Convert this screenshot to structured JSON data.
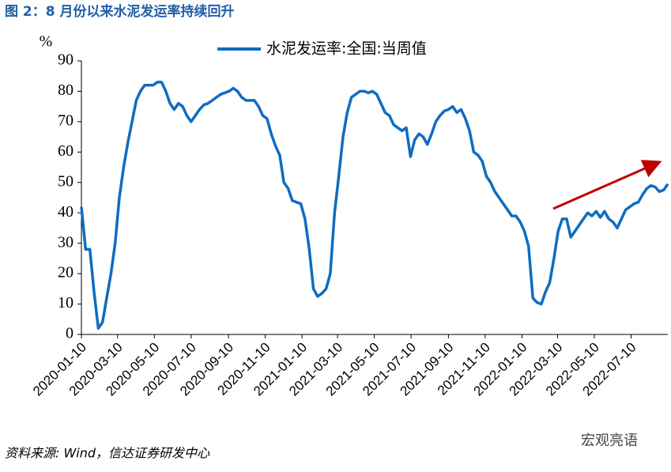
{
  "chart_data": {
    "type": "line",
    "title": "图 2：8 月份以来水泥发运率持续回升",
    "y_unit": "%",
    "source": "资料来源: Wind，信达证券研发中心",
    "watermark": "宏观亮语",
    "legend_position": "top",
    "x": [
      "2020-01-10",
      "2020-01-17",
      "2020-01-24",
      "2020-01-31",
      "2020-02-07",
      "2020-02-14",
      "2020-02-21",
      "2020-02-28",
      "2020-03-06",
      "2020-03-13",
      "2020-03-20",
      "2020-03-27",
      "2020-04-03",
      "2020-04-10",
      "2020-04-17",
      "2020-04-24",
      "2020-05-01",
      "2020-05-08",
      "2020-05-15",
      "2020-05-22",
      "2020-05-29",
      "2020-06-05",
      "2020-06-12",
      "2020-06-19",
      "2020-06-26",
      "2020-07-03",
      "2020-07-10",
      "2020-07-17",
      "2020-07-24",
      "2020-07-31",
      "2020-08-07",
      "2020-08-14",
      "2020-08-21",
      "2020-08-28",
      "2020-09-04",
      "2020-09-11",
      "2020-09-18",
      "2020-09-25",
      "2020-10-02",
      "2020-10-09",
      "2020-10-16",
      "2020-10-23",
      "2020-10-30",
      "2020-11-06",
      "2020-11-13",
      "2020-11-20",
      "2020-11-27",
      "2020-12-04",
      "2020-12-11",
      "2020-12-18",
      "2020-12-25",
      "2021-01-01",
      "2021-01-08",
      "2021-01-15",
      "2021-01-22",
      "2021-01-29",
      "2021-02-05",
      "2021-02-12",
      "2021-02-19",
      "2021-02-26",
      "2021-03-05",
      "2021-03-12",
      "2021-03-19",
      "2021-03-26",
      "2021-04-02",
      "2021-04-09",
      "2021-04-16",
      "2021-04-23",
      "2021-04-30",
      "2021-05-07",
      "2021-05-14",
      "2021-05-21",
      "2021-05-28",
      "2021-06-04",
      "2021-06-11",
      "2021-06-18",
      "2021-06-25",
      "2021-07-02",
      "2021-07-09",
      "2021-07-16",
      "2021-07-23",
      "2021-07-30",
      "2021-08-06",
      "2021-08-13",
      "2021-08-20",
      "2021-08-27",
      "2021-09-03",
      "2021-09-10",
      "2021-09-17",
      "2021-09-24",
      "2021-10-01",
      "2021-10-08",
      "2021-10-15",
      "2021-10-22",
      "2021-10-29",
      "2021-11-05",
      "2021-11-12",
      "2021-11-19",
      "2021-11-26",
      "2021-12-03",
      "2021-12-10",
      "2021-12-17",
      "2021-12-24",
      "2021-12-31",
      "2022-01-07",
      "2022-01-14",
      "2022-01-21",
      "2022-01-28",
      "2022-02-04",
      "2022-02-11",
      "2022-02-18",
      "2022-02-25",
      "2022-03-04",
      "2022-03-11",
      "2022-03-18",
      "2022-03-25",
      "2022-04-01",
      "2022-04-08",
      "2022-04-15",
      "2022-04-22",
      "2022-04-29",
      "2022-05-06",
      "2022-05-13",
      "2022-05-20",
      "2022-05-27",
      "2022-06-03",
      "2022-06-10",
      "2022-06-17",
      "2022-06-24",
      "2022-07-01",
      "2022-07-08",
      "2022-07-15",
      "2022-07-22",
      "2022-07-29",
      "2022-08-05",
      "2022-08-12",
      "2022-08-19",
      "2022-08-26",
      "2022-09-02",
      "2022-09-09"
    ],
    "series": [
      {
        "name": "水泥发运率:全国:当周值",
        "color": "#0f6cc0",
        "values": [
          42,
          28,
          28,
          14,
          2,
          4,
          12,
          20,
          30,
          45,
          55,
          63,
          70,
          77,
          80,
          82,
          82,
          82,
          83,
          83,
          80,
          76,
          74,
          76,
          75,
          72,
          70,
          72,
          74,
          75.5,
          76,
          77,
          78,
          79,
          79.5,
          80,
          81,
          80,
          78,
          77,
          77,
          77,
          75,
          72,
          71,
          66,
          62,
          59,
          50,
          48,
          44,
          43.5,
          43,
          38,
          28,
          15,
          12.5,
          13.5,
          15,
          20,
          40,
          52,
          65,
          73,
          78,
          79,
          80,
          80,
          79.5,
          80,
          79,
          76,
          73,
          72,
          69,
          68,
          67,
          68,
          58.5,
          64,
          66,
          65,
          62.5,
          66,
          70,
          72,
          73.5,
          74,
          75,
          73,
          74,
          71,
          67,
          60,
          59,
          57,
          52,
          50,
          47,
          45,
          43,
          41,
          39,
          39,
          37,
          34,
          29,
          12,
          10.5,
          10,
          14,
          17,
          25,
          34,
          38,
          38,
          32,
          34,
          36,
          38,
          40,
          39,
          40.5,
          38.5,
          40.5,
          38,
          37,
          35,
          38,
          41,
          42,
          43,
          43.5,
          46,
          48,
          49,
          48.5,
          47,
          47.5,
          49.5
        ]
      }
    ],
    "xlim": [
      "2020-01-10",
      "2022-09-09"
    ],
    "xticks": [
      "2020-01-10",
      "2020-03-10",
      "2020-05-10",
      "2020-07-10",
      "2020-09-10",
      "2020-11-10",
      "2021-01-10",
      "2021-03-10",
      "2021-05-10",
      "2021-07-10",
      "2021-09-10",
      "2021-11-10",
      "2022-01-10",
      "2022-03-10",
      "2022-05-10",
      "2022-07-10"
    ],
    "ylim": [
      0,
      90
    ],
    "yticks": [
      0,
      10,
      20,
      30,
      40,
      50,
      60,
      70,
      80,
      90
    ]
  }
}
